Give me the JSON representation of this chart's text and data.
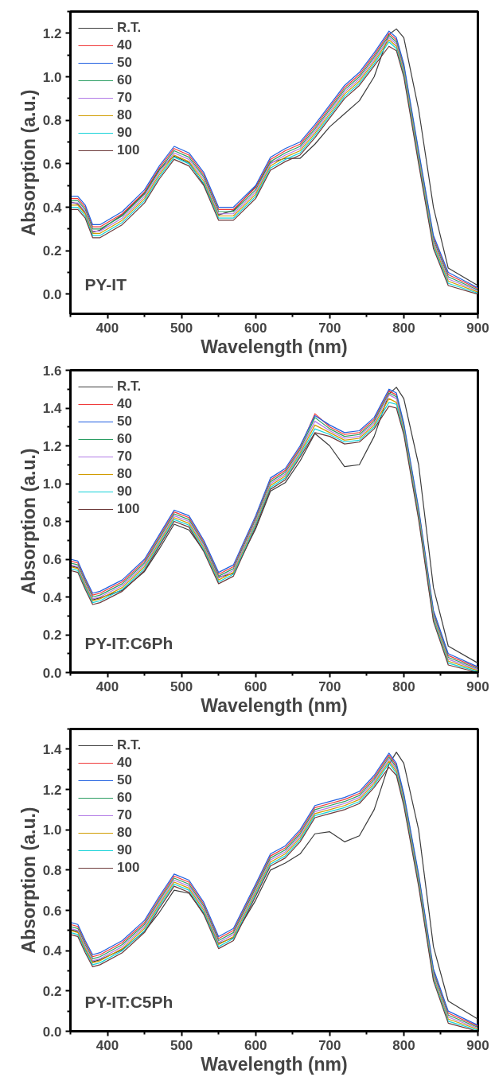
{
  "chart_data": [
    {
      "type": "line",
      "xlabel": "Wavelength (nm)",
      "ylabel": "Absorption (a.u.)",
      "annotations": [
        "PY-IT"
      ],
      "legend": "top left",
      "grid": false,
      "marker": "none",
      "line_style": "solid",
      "xlim": [
        350,
        900
      ],
      "ylim": [
        -0.09,
        1.3
      ],
      "xticks": [
        400,
        500,
        600,
        700,
        800,
        900
      ],
      "yticks": [
        {
          "value": 0,
          "label": "0.0"
        },
        {
          "value": 0.2,
          "label": "0.2"
        },
        {
          "value": 0.4,
          "label": "0.4"
        },
        {
          "value": 0.6,
          "label": "0.6"
        },
        {
          "value": 0.8,
          "label": "0.8"
        },
        {
          "value": 1.0,
          "label": "1.0"
        },
        {
          "value": 1.2,
          "label": "1.2"
        }
      ],
      "x": [
        350,
        360,
        370,
        380,
        390,
        420,
        450,
        470,
        490,
        510,
        530,
        550,
        570,
        600,
        620,
        640,
        660,
        680,
        700,
        720,
        740,
        760,
        780,
        790,
        800,
        820,
        840,
        860,
        900
      ],
      "series": [
        {
          "name": "R.T.",
          "color": "#3c3c3c",
          "values": [
            0.425,
            0.415,
            0.375,
            0.285,
            0.295,
            0.365,
            0.465,
            0.575,
            0.635,
            0.605,
            0.505,
            0.365,
            0.385,
            0.495,
            0.605,
            0.625,
            0.625,
            0.69,
            0.77,
            0.83,
            0.89,
            1.0,
            1.195,
            1.22,
            1.18,
            0.85,
            0.4,
            0.12,
            0.04
          ]
        },
        {
          "name": "40",
          "color": "#f03a3a",
          "values": [
            0.44,
            0.44,
            0.4,
            0.31,
            0.31,
            0.37,
            0.47,
            0.58,
            0.67,
            0.64,
            0.55,
            0.39,
            0.39,
            0.49,
            0.62,
            0.66,
            0.69,
            0.77,
            0.86,
            0.95,
            1.01,
            1.1,
            1.2,
            1.17,
            1.05,
            0.65,
            0.26,
            0.09,
            0.025
          ]
        },
        {
          "name": "50",
          "color": "#1f5fe0",
          "values": [
            0.45,
            0.45,
            0.41,
            0.32,
            0.32,
            0.38,
            0.48,
            0.59,
            0.68,
            0.65,
            0.56,
            0.4,
            0.4,
            0.5,
            0.63,
            0.67,
            0.7,
            0.78,
            0.87,
            0.96,
            1.02,
            1.11,
            1.21,
            1.18,
            1.06,
            0.66,
            0.27,
            0.1,
            0.03
          ]
        },
        {
          "name": "60",
          "color": "#2a9d62",
          "values": [
            0.43,
            0.43,
            0.39,
            0.3,
            0.3,
            0.36,
            0.46,
            0.57,
            0.66,
            0.63,
            0.54,
            0.38,
            0.38,
            0.48,
            0.61,
            0.65,
            0.68,
            0.76,
            0.85,
            0.94,
            1.0,
            1.09,
            1.19,
            1.16,
            1.04,
            0.64,
            0.25,
            0.08,
            0.02
          ]
        },
        {
          "name": "70",
          "color": "#b27ae6",
          "values": [
            0.42,
            0.42,
            0.38,
            0.29,
            0.29,
            0.35,
            0.45,
            0.56,
            0.65,
            0.62,
            0.53,
            0.37,
            0.37,
            0.47,
            0.6,
            0.64,
            0.67,
            0.75,
            0.84,
            0.93,
            0.99,
            1.08,
            1.18,
            1.15,
            1.03,
            0.63,
            0.24,
            0.07,
            0.015
          ]
        },
        {
          "name": "80",
          "color": "#d19c00",
          "values": [
            0.41,
            0.41,
            0.37,
            0.28,
            0.28,
            0.34,
            0.44,
            0.55,
            0.64,
            0.61,
            0.52,
            0.36,
            0.36,
            0.46,
            0.59,
            0.63,
            0.66,
            0.74,
            0.83,
            0.92,
            0.98,
            1.07,
            1.17,
            1.14,
            1.02,
            0.62,
            0.23,
            0.06,
            0.01
          ]
        },
        {
          "name": "90",
          "color": "#14d2d8",
          "values": [
            0.4,
            0.4,
            0.36,
            0.27,
            0.27,
            0.33,
            0.43,
            0.54,
            0.63,
            0.6,
            0.51,
            0.35,
            0.35,
            0.45,
            0.58,
            0.62,
            0.65,
            0.73,
            0.82,
            0.91,
            0.97,
            1.06,
            1.16,
            1.13,
            1.01,
            0.61,
            0.22,
            0.05,
            0.005
          ]
        },
        {
          "name": "100",
          "color": "#6e3b3b",
          "values": [
            0.39,
            0.39,
            0.35,
            0.26,
            0.26,
            0.32,
            0.42,
            0.53,
            0.62,
            0.59,
            0.5,
            0.34,
            0.34,
            0.44,
            0.57,
            0.61,
            0.64,
            0.72,
            0.81,
            0.9,
            0.96,
            1.05,
            1.14,
            1.12,
            1.0,
            0.6,
            0.21,
            0.04,
            0.0
          ]
        }
      ]
    },
    {
      "type": "line",
      "xlabel": "Wavelength (nm)",
      "ylabel": "Absorption (a.u.)",
      "annotations": [
        "PY-IT:C6Ph"
      ],
      "legend": "top left",
      "grid": false,
      "marker": "none",
      "line_style": "solid",
      "xlim": [
        350,
        900
      ],
      "ylim": [
        0,
        1.6
      ],
      "xticks": [
        400,
        500,
        600,
        700,
        800,
        900
      ],
      "yticks": [
        {
          "value": 0,
          "label": "0.0"
        },
        {
          "value": 0.2,
          "label": "0.2"
        },
        {
          "value": 0.4,
          "label": "0.4"
        },
        {
          "value": 0.6,
          "label": "0.6"
        },
        {
          "value": 0.8,
          "label": "0.8"
        },
        {
          "value": 1.0,
          "label": "1.0"
        },
        {
          "value": 1.2,
          "label": "1.2"
        },
        {
          "value": 1.4,
          "label": "1.4"
        },
        {
          "value": 1.6,
          "label": "1.6"
        }
      ],
      "x": [
        350,
        360,
        370,
        380,
        390,
        420,
        450,
        470,
        490,
        510,
        530,
        550,
        570,
        600,
        620,
        640,
        660,
        680,
        700,
        720,
        740,
        760,
        780,
        790,
        800,
        820,
        840,
        860,
        900
      ],
      "series": [
        {
          "name": "R.T.",
          "color": "#3c3c3c",
          "values": [
            0.565,
            0.555,
            0.455,
            0.385,
            0.395,
            0.435,
            0.535,
            0.655,
            0.785,
            0.755,
            0.645,
            0.505,
            0.525,
            0.76,
            0.96,
            1.005,
            1.12,
            1.265,
            1.2,
            1.09,
            1.1,
            1.25,
            1.475,
            1.51,
            1.45,
            1.1,
            0.45,
            0.14,
            0.05
          ]
        },
        {
          "name": "40",
          "color": "#f03a3a",
          "values": [
            0.59,
            0.58,
            0.49,
            0.41,
            0.42,
            0.48,
            0.59,
            0.72,
            0.85,
            0.82,
            0.69,
            0.52,
            0.56,
            0.82,
            1.02,
            1.07,
            1.19,
            1.37,
            1.3,
            1.26,
            1.27,
            1.34,
            1.49,
            1.47,
            1.31,
            0.86,
            0.32,
            0.09,
            0.025
          ]
        },
        {
          "name": "50",
          "color": "#1f5fe0",
          "values": [
            0.6,
            0.59,
            0.5,
            0.42,
            0.43,
            0.49,
            0.6,
            0.73,
            0.86,
            0.83,
            0.7,
            0.53,
            0.57,
            0.83,
            1.03,
            1.08,
            1.2,
            1.36,
            1.31,
            1.27,
            1.28,
            1.35,
            1.5,
            1.48,
            1.32,
            0.87,
            0.33,
            0.1,
            0.03
          ]
        },
        {
          "name": "60",
          "color": "#2a9d62",
          "values": [
            0.58,
            0.57,
            0.48,
            0.4,
            0.41,
            0.47,
            0.58,
            0.71,
            0.84,
            0.81,
            0.68,
            0.51,
            0.55,
            0.81,
            1.01,
            1.06,
            1.18,
            1.35,
            1.29,
            1.25,
            1.26,
            1.33,
            1.48,
            1.46,
            1.3,
            0.85,
            0.31,
            0.08,
            0.02
          ]
        },
        {
          "name": "70",
          "color": "#b27ae6",
          "values": [
            0.57,
            0.56,
            0.47,
            0.39,
            0.4,
            0.46,
            0.57,
            0.7,
            0.83,
            0.8,
            0.67,
            0.5,
            0.54,
            0.8,
            1.0,
            1.05,
            1.17,
            1.33,
            1.28,
            1.24,
            1.25,
            1.32,
            1.47,
            1.45,
            1.29,
            0.84,
            0.3,
            0.07,
            0.015
          ]
        },
        {
          "name": "80",
          "color": "#d19c00",
          "values": [
            0.56,
            0.55,
            0.46,
            0.38,
            0.39,
            0.45,
            0.56,
            0.69,
            0.82,
            0.79,
            0.66,
            0.49,
            0.53,
            0.79,
            0.99,
            1.04,
            1.16,
            1.31,
            1.27,
            1.23,
            1.24,
            1.31,
            1.45,
            1.43,
            1.28,
            0.83,
            0.29,
            0.06,
            0.01
          ]
        },
        {
          "name": "90",
          "color": "#14d2d8",
          "values": [
            0.55,
            0.54,
            0.45,
            0.37,
            0.38,
            0.44,
            0.55,
            0.68,
            0.81,
            0.78,
            0.65,
            0.48,
            0.52,
            0.78,
            0.98,
            1.03,
            1.15,
            1.29,
            1.26,
            1.22,
            1.23,
            1.3,
            1.43,
            1.42,
            1.27,
            0.82,
            0.28,
            0.05,
            0.005
          ]
        },
        {
          "name": "100",
          "color": "#6e3b3b",
          "values": [
            0.54,
            0.53,
            0.44,
            0.36,
            0.37,
            0.43,
            0.54,
            0.67,
            0.8,
            0.77,
            0.64,
            0.47,
            0.51,
            0.77,
            0.97,
            1.02,
            1.14,
            1.27,
            1.25,
            1.21,
            1.22,
            1.29,
            1.41,
            1.4,
            1.26,
            0.81,
            0.27,
            0.04,
            0.0
          ]
        }
      ]
    },
    {
      "type": "line",
      "xlabel": "Wavelength (nm)",
      "ylabel": "Absorption (a.u.)",
      "annotations": [
        "PY-IT:C5Ph"
      ],
      "legend": "top left",
      "grid": false,
      "marker": "none",
      "line_style": "solid",
      "xlim": [
        350,
        900
      ],
      "ylim": [
        0,
        1.5
      ],
      "xticks": [
        400,
        500,
        600,
        700,
        800,
        900
      ],
      "yticks": [
        {
          "value": 0,
          "label": "0.0"
        },
        {
          "value": 0.2,
          "label": "0.2"
        },
        {
          "value": 0.4,
          "label": "0.4"
        },
        {
          "value": 0.6,
          "label": "0.6"
        },
        {
          "value": 0.8,
          "label": "0.8"
        },
        {
          "value": 1.0,
          "label": "1.0"
        },
        {
          "value": 1.2,
          "label": "1.2"
        },
        {
          "value": 1.4,
          "label": "1.4"
        }
      ],
      "x": [
        350,
        360,
        370,
        380,
        390,
        420,
        450,
        470,
        490,
        510,
        530,
        550,
        570,
        600,
        620,
        640,
        660,
        680,
        700,
        720,
        740,
        760,
        780,
        790,
        800,
        820,
        840,
        860,
        900
      ],
      "series": [
        {
          "name": "R.T.",
          "color": "#3c3c3c",
          "values": [
            0.505,
            0.495,
            0.405,
            0.345,
            0.355,
            0.405,
            0.495,
            0.59,
            0.7,
            0.685,
            0.585,
            0.435,
            0.465,
            0.65,
            0.8,
            0.835,
            0.88,
            0.98,
            0.99,
            0.94,
            0.97,
            1.1,
            1.325,
            1.385,
            1.33,
            1.0,
            0.42,
            0.15,
            0.06
          ]
        },
        {
          "name": "40",
          "color": "#f03a3a",
          "values": [
            0.53,
            0.52,
            0.44,
            0.37,
            0.38,
            0.44,
            0.54,
            0.66,
            0.77,
            0.74,
            0.63,
            0.46,
            0.5,
            0.72,
            0.87,
            0.91,
            0.99,
            1.11,
            1.13,
            1.15,
            1.18,
            1.26,
            1.37,
            1.32,
            1.17,
            0.77,
            0.3,
            0.09,
            0.025
          ]
        },
        {
          "name": "50",
          "color": "#1f5fe0",
          "values": [
            0.54,
            0.53,
            0.45,
            0.38,
            0.39,
            0.45,
            0.55,
            0.67,
            0.78,
            0.75,
            0.64,
            0.47,
            0.51,
            0.73,
            0.88,
            0.92,
            1.0,
            1.12,
            1.14,
            1.16,
            1.19,
            1.27,
            1.38,
            1.33,
            1.18,
            0.78,
            0.31,
            0.1,
            0.03
          ]
        },
        {
          "name": "60",
          "color": "#2a9d62",
          "values": [
            0.52,
            0.51,
            0.43,
            0.36,
            0.37,
            0.43,
            0.53,
            0.65,
            0.76,
            0.73,
            0.62,
            0.45,
            0.49,
            0.71,
            0.86,
            0.9,
            0.98,
            1.1,
            1.12,
            1.14,
            1.17,
            1.25,
            1.36,
            1.31,
            1.16,
            0.76,
            0.29,
            0.08,
            0.02
          ]
        },
        {
          "name": "70",
          "color": "#b27ae6",
          "values": [
            0.51,
            0.5,
            0.42,
            0.35,
            0.36,
            0.42,
            0.52,
            0.64,
            0.75,
            0.72,
            0.61,
            0.44,
            0.48,
            0.7,
            0.85,
            0.89,
            0.97,
            1.09,
            1.11,
            1.13,
            1.16,
            1.24,
            1.35,
            1.3,
            1.15,
            0.75,
            0.28,
            0.07,
            0.015
          ]
        },
        {
          "name": "80",
          "color": "#d19c00",
          "values": [
            0.5,
            0.49,
            0.41,
            0.34,
            0.35,
            0.41,
            0.51,
            0.63,
            0.74,
            0.71,
            0.6,
            0.43,
            0.47,
            0.69,
            0.84,
            0.88,
            0.96,
            1.08,
            1.1,
            1.12,
            1.15,
            1.23,
            1.34,
            1.29,
            1.14,
            0.74,
            0.27,
            0.06,
            0.01
          ]
        },
        {
          "name": "90",
          "color": "#14d2d8",
          "values": [
            0.49,
            0.48,
            0.4,
            0.33,
            0.34,
            0.4,
            0.5,
            0.62,
            0.73,
            0.7,
            0.59,
            0.42,
            0.46,
            0.68,
            0.83,
            0.87,
            0.95,
            1.07,
            1.09,
            1.11,
            1.14,
            1.22,
            1.33,
            1.28,
            1.13,
            0.73,
            0.26,
            0.05,
            0.005
          ]
        },
        {
          "name": "100",
          "color": "#6e3b3b",
          "values": [
            0.48,
            0.47,
            0.39,
            0.32,
            0.33,
            0.39,
            0.49,
            0.61,
            0.72,
            0.69,
            0.58,
            0.41,
            0.45,
            0.67,
            0.82,
            0.86,
            0.94,
            1.06,
            1.08,
            1.1,
            1.13,
            1.21,
            1.31,
            1.27,
            1.12,
            0.72,
            0.25,
            0.04,
            0.0
          ]
        }
      ]
    }
  ]
}
